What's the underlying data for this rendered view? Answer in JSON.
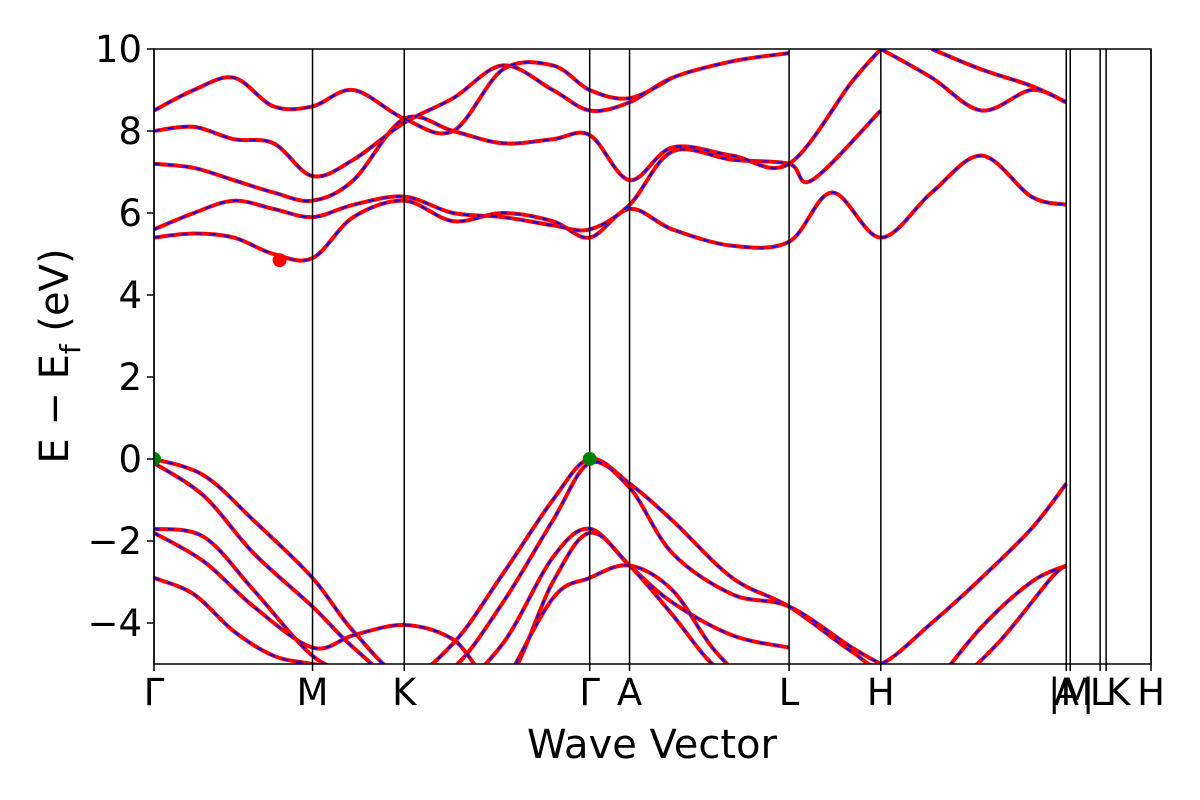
{
  "chart_data": {
    "type": "line",
    "title": "",
    "xlabel": "Wave Vector",
    "ylabel": "E − E",
    "ylabel_subscript": "f",
    "ylabel_unit": "(eV)",
    "ylim": [
      -5,
      10
    ],
    "yticks": [
      -4,
      -2,
      0,
      2,
      4,
      6,
      8,
      10
    ],
    "ytick_labels": [
      "−4",
      "−2",
      "0",
      "2",
      "4",
      "6",
      "8",
      "10"
    ],
    "xlim": [
      0,
      1
    ],
    "kpoints": [
      {
        "label": "Γ",
        "x": 0.0
      },
      {
        "label": "M",
        "x": 0.159
      },
      {
        "label": "K",
        "x": 0.251
      },
      {
        "label": "Γ",
        "x": 0.437
      },
      {
        "label": "A",
        "x": 0.477
      },
      {
        "label": "L",
        "x": 0.637
      },
      {
        "label": "H",
        "x": 0.729
      },
      {
        "label": "A",
        "x": 0.915
      },
      {
        "label": "|M",
        "x": 0.919
      },
      {
        "label": "L",
        "x": 0.949
      },
      {
        "label": "| K",
        "x": 0.955
      },
      {
        "label": "H",
        "x": 1.0
      }
    ],
    "series_colors": {
      "solid": "#ff0000",
      "dashed": "#0000ff"
    },
    "valence_bands": [
      {
        "x": [
          0,
          0.05,
          0.1,
          0.159,
          0.2,
          0.251,
          0.3,
          0.35,
          0.4,
          0.437,
          0.477,
          0.52,
          0.58,
          0.637,
          0.7,
          0.729,
          0.78,
          0.83,
          0.88,
          0.915
        ],
        "y": [
          0,
          -0.4,
          -1.5,
          -2.9,
          -4.2,
          -5.3,
          -4.5,
          -2.8,
          -1.0,
          0,
          -0.6,
          -1.5,
          -2.9,
          -3.6,
          -4.7,
          -5.0,
          -4.0,
          -2.9,
          -1.7,
          -0.6
        ]
      },
      {
        "x": [
          0,
          0.05,
          0.1,
          0.159,
          0.2,
          0.251,
          0.3,
          0.35,
          0.4,
          0.437,
          0.477,
          0.52,
          0.58,
          0.637,
          0.7,
          0.729
        ],
        "y": [
          -0.1,
          -0.9,
          -2.3,
          -3.6,
          -4.6,
          -5.5,
          -5.1,
          -3.5,
          -1.5,
          -0.1,
          -0.7,
          -2.3,
          -3.3,
          -3.6,
          -4.6,
          -5.0
        ]
      },
      {
        "x": [
          0,
          0.05,
          0.1,
          0.159,
          0.2,
          0.25,
          0.3,
          0.35,
          0.4,
          0.437,
          0.477,
          0.52,
          0.58,
          0.637
        ],
        "y": [
          -1.7,
          -1.9,
          -3.2,
          -4.8,
          -5.2,
          -5.5,
          -5.6,
          -4.5,
          -2.4,
          -1.7,
          -2.6,
          -3.5,
          -4.3,
          -4.6
        ]
      },
      {
        "x": [
          0,
          0.05,
          0.1,
          0.159,
          0.2,
          0.251,
          0.3,
          0.35,
          0.4,
          0.437,
          0.477,
          0.52,
          0.56,
          0.6
        ],
        "y": [
          -1.8,
          -2.5,
          -3.6,
          -4.6,
          -4.3,
          -4.05,
          -4.4,
          -5.5,
          -3.0,
          -1.8,
          -2.6,
          -3.8,
          -5.0,
          -5.6
        ]
      },
      {
        "x": [
          0,
          0.04,
          0.08,
          0.12,
          0.159,
          0.2,
          0.25
        ],
        "y": [
          -2.9,
          -3.3,
          -4.2,
          -4.8,
          -5.0,
          -5.2,
          -5.6
        ]
      },
      {
        "x": [
          0.35,
          0.4,
          0.437,
          0.477,
          0.52,
          0.56,
          0.6
        ],
        "y": [
          -5.6,
          -3.4,
          -2.9,
          -2.6,
          -3.2,
          -4.6,
          -5.6
        ]
      },
      {
        "x": [
          0.78,
          0.83,
          0.88,
          0.915
        ],
        "y": [
          -5.6,
          -4.1,
          -3.0,
          -2.6
        ]
      },
      {
        "x": [
          0.8,
          0.85,
          0.9,
          0.915
        ],
        "y": [
          -5.6,
          -4.4,
          -2.9,
          -2.6
        ]
      }
    ],
    "conduction_bands": [
      {
        "x": [
          0,
          0.04,
          0.08,
          0.12,
          0.159,
          0.2,
          0.251,
          0.3,
          0.35,
          0.4,
          0.437,
          0.477,
          0.52,
          0.58,
          0.637,
          0.68,
          0.729,
          0.78,
          0.83,
          0.88,
          0.915
        ],
        "y": [
          5.4,
          5.5,
          5.4,
          5.0,
          4.9,
          5.9,
          6.3,
          5.8,
          6.0,
          5.8,
          5.4,
          6.1,
          5.6,
          5.2,
          5.3,
          6.5,
          5.4,
          6.5,
          7.4,
          6.4,
          6.2
        ]
      },
      {
        "x": [
          0,
          0.04,
          0.08,
          0.12,
          0.159,
          0.2,
          0.251,
          0.3,
          0.35,
          0.4,
          0.437,
          0.477,
          0.52,
          0.58,
          0.637,
          0.66,
          0.729
        ],
        "y": [
          5.6,
          6.0,
          6.3,
          6.1,
          5.9,
          6.2,
          6.4,
          6.0,
          5.9,
          5.7,
          5.6,
          6.2,
          7.5,
          7.3,
          7.2,
          6.8,
          8.5
        ]
      },
      {
        "x": [
          0,
          0.04,
          0.08,
          0.12,
          0.159,
          0.2,
          0.251,
          0.3,
          0.35,
          0.4,
          0.437,
          0.477,
          0.52,
          0.58,
          0.637,
          0.7,
          0.729
        ],
        "y": [
          7.2,
          7.1,
          6.8,
          6.5,
          6.3,
          6.8,
          8.3,
          8.0,
          7.7,
          7.8,
          7.9,
          6.8,
          7.6,
          7.4,
          7.2,
          9.2,
          10.0
        ]
      },
      {
        "x": [
          0,
          0.04,
          0.08,
          0.12,
          0.159,
          0.2,
          0.251,
          0.3,
          0.35,
          0.4,
          0.437,
          0.477,
          0.52,
          0.58,
          0.637
        ],
        "y": [
          8.0,
          8.1,
          7.8,
          7.7,
          6.9,
          7.3,
          8.2,
          8.8,
          9.6,
          9.0,
          8.5,
          8.7,
          9.3,
          9.7,
          9.9
        ]
      },
      {
        "x": [
          0,
          0.04,
          0.08,
          0.12,
          0.159,
          0.2,
          0.251,
          0.3,
          0.35,
          0.4,
          0.437,
          0.477,
          0.52
        ],
        "y": [
          8.5,
          9.0,
          9.3,
          8.6,
          8.6,
          9.0,
          8.3,
          8.0,
          9.5,
          9.6,
          9.0,
          8.8,
          9.3
        ]
      },
      {
        "x": [
          0.729,
          0.78,
          0.83,
          0.88,
          0.915
        ],
        "y": [
          10.0,
          9.3,
          8.5,
          9.0,
          8.7
        ]
      },
      {
        "x": [
          0.78,
          0.83,
          0.88,
          0.915
        ],
        "y": [
          10.0,
          9.5,
          9.1,
          8.7
        ]
      }
    ],
    "markers": [
      {
        "x": 0.0,
        "y": 0.0,
        "color": "#008000"
      },
      {
        "x": 0.437,
        "y": 0.0,
        "color": "#008000"
      },
      {
        "x": 0.126,
        "y": 4.85,
        "color": "#ff0000"
      }
    ]
  }
}
